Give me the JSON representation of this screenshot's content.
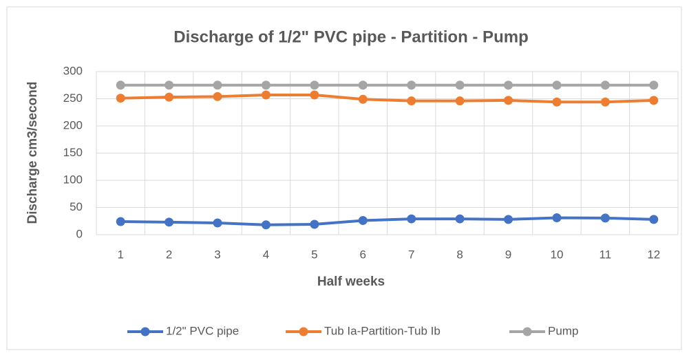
{
  "chart_data": {
    "type": "line",
    "title": "Discharge of 1/2\" PVC pipe - Partition - Pump",
    "x_label": "Half weeks",
    "y_label": "Discharge cm3/second",
    "categories": [
      "1",
      "2",
      "3",
      "4",
      "5",
      "6",
      "7",
      "8",
      "9",
      "10",
      "11",
      "12"
    ],
    "series": [
      {
        "name": "1/2\" PVC pipe",
        "color": "#4472c4",
        "values": [
          24,
          23,
          21.5,
          18,
          19,
          26,
          29,
          29,
          28,
          31,
          30.5,
          28
        ]
      },
      {
        "name": "Tub Ia-Partition-Tub Ib",
        "color": "#ed7d31",
        "values": [
          251,
          253,
          254,
          257,
          257,
          249,
          246,
          246,
          247,
          244,
          244,
          247
        ]
      },
      {
        "name": "Pump",
        "color": "#a5a5a5",
        "values": [
          275,
          275,
          275,
          275,
          275,
          275,
          275,
          275,
          275,
          275,
          275,
          275
        ]
      }
    ],
    "ylim": [
      0,
      300
    ],
    "yticks": [
      0,
      50,
      100,
      150,
      200,
      250,
      300
    ],
    "grid": true,
    "legend": "bottom"
  }
}
